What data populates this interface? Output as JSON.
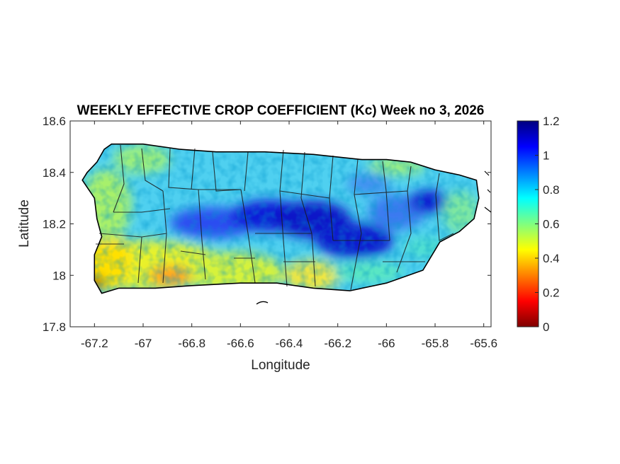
{
  "title": "WEEKLY EFFECTIVE CROP COEFFICIENT (Kc) Week no 3, 2026",
  "xlabel": "Longitude",
  "ylabel": "Latitude",
  "map": {
    "region": "Puerto Rico",
    "xlim": [
      -67.3,
      -65.57
    ],
    "ylim": [
      17.8,
      18.6
    ],
    "x_ticks": [
      "-67.2",
      "-67",
      "-66.8",
      "-66.6",
      "-66.4",
      "-66.2",
      "-66",
      "-65.8",
      "-65.6"
    ],
    "x_tick_values": [
      -67.2,
      -67.0,
      -66.8,
      -66.6,
      -66.4,
      -66.2,
      -66.0,
      -65.8,
      -65.6
    ],
    "y_ticks": [
      "18.6",
      "18.4",
      "18.2",
      "18",
      "17.8"
    ],
    "y_tick_values": [
      18.6,
      18.4,
      18.2,
      18.0,
      17.8
    ],
    "colormap": "jet",
    "colorbar": {
      "min": 0,
      "max": 1.2,
      "ticks": [
        "1.2",
        "1",
        "0.8",
        "0.6",
        "0.4",
        "0.2",
        "0"
      ],
      "tick_values": [
        1.2,
        1.0,
        0.8,
        0.6,
        0.4,
        0.2,
        0.0
      ],
      "colors": [
        "#7f0000",
        "#ff0000",
        "#ffff00",
        "#00ffff",
        "#0000ff",
        "#00007f"
      ]
    },
    "island_outline": [
      [
        -67.25,
        18.37
      ],
      [
        -67.23,
        18.4
      ],
      [
        -67.19,
        18.44
      ],
      [
        -67.16,
        18.49
      ],
      [
        -67.13,
        18.51
      ],
      [
        -67.0,
        18.51
      ],
      [
        -66.85,
        18.49
      ],
      [
        -66.7,
        18.48
      ],
      [
        -66.5,
        18.48
      ],
      [
        -66.3,
        18.47
      ],
      [
        -66.1,
        18.45
      ],
      [
        -66.0,
        18.45
      ],
      [
        -65.9,
        18.44
      ],
      [
        -65.8,
        18.41
      ],
      [
        -65.7,
        18.39
      ],
      [
        -65.63,
        18.37
      ],
      [
        -65.62,
        18.3
      ],
      [
        -65.64,
        18.22
      ],
      [
        -65.7,
        18.17
      ],
      [
        -65.78,
        18.13
      ],
      [
        -65.85,
        18.02
      ],
      [
        -66.0,
        17.97
      ],
      [
        -66.15,
        17.94
      ],
      [
        -66.3,
        17.95
      ],
      [
        -66.45,
        17.97
      ],
      [
        -66.6,
        17.97
      ],
      [
        -66.8,
        17.96
      ],
      [
        -66.95,
        17.95
      ],
      [
        -67.1,
        17.95
      ],
      [
        -67.17,
        17.93
      ],
      [
        -67.2,
        17.98
      ],
      [
        -67.2,
        18.08
      ],
      [
        -67.17,
        18.15
      ],
      [
        -67.19,
        18.22
      ],
      [
        -67.2,
        18.3
      ]
    ]
  }
}
